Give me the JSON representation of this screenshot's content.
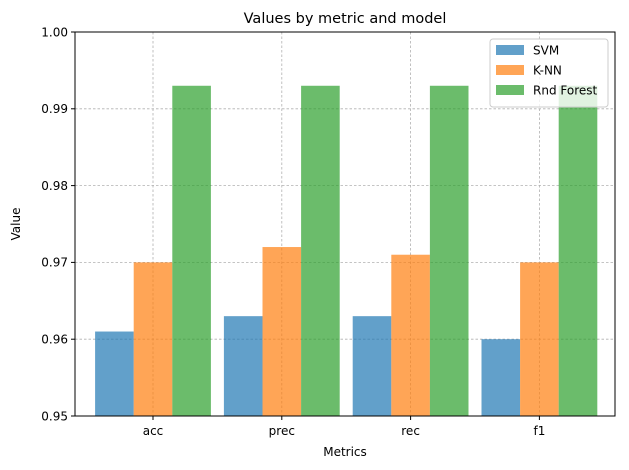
{
  "chart_data": {
    "type": "bar",
    "title": "Values by metric and model",
    "xlabel": "Metrics",
    "ylabel": "Value",
    "categories": [
      "acc",
      "prec",
      "rec",
      "f1"
    ],
    "ylim": [
      0.95,
      1.0
    ],
    "yticks": [
      "0.95",
      "0.96",
      "0.97",
      "0.98",
      "0.99",
      "1.00"
    ],
    "grid": true,
    "legend_position": "top-right",
    "series": [
      {
        "name": "SVM",
        "color": "#1f77b4",
        "values": [
          0.961,
          0.963,
          0.963,
          0.96
        ]
      },
      {
        "name": "K-NN",
        "color": "#ff7f0e",
        "values": [
          0.97,
          0.972,
          0.971,
          0.97
        ]
      },
      {
        "name": "Rnd Forest",
        "color": "#2ca02c",
        "values": [
          0.993,
          0.993,
          0.993,
          0.993
        ]
      }
    ]
  }
}
